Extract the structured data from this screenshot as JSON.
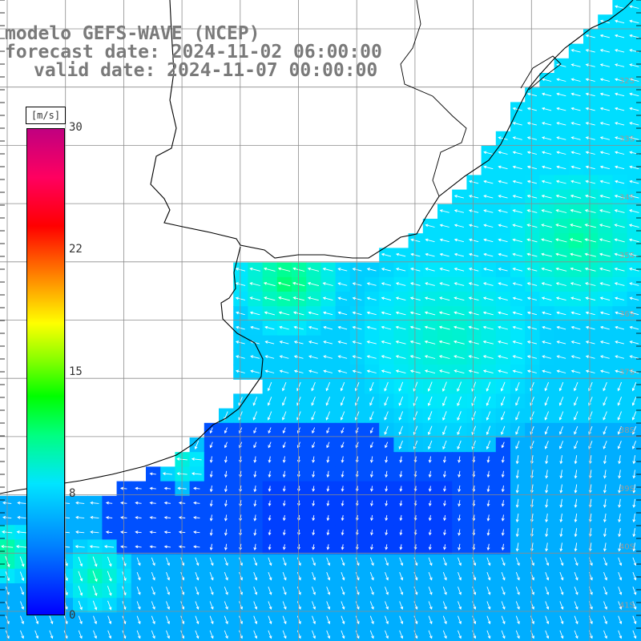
{
  "title": {
    "line1": "modelo GEFS-WAVE (NCEP)",
    "line2": "forecast date: 2024-11-02 06:00:00",
    "line3": "valid date: 2024-11-07 00:00:00"
  },
  "colorbar": {
    "unit": "[m/s]",
    "min": 0,
    "max": 30,
    "ticks": [
      "30",
      "22",
      "15",
      "8",
      "0"
    ],
    "tick_values": [
      30,
      22,
      15,
      8,
      0
    ],
    "colors": [
      "#0000ff",
      "#0080ff",
      "#00e5ff",
      "#00ff80",
      "#00ff00",
      "#ffff00",
      "#ff8000",
      "#ff0000",
      "#c00080"
    ]
  },
  "latitude_labels": [
    "32S",
    "33S",
    "34S",
    "35S",
    "36S",
    "37S",
    "38S",
    "39S",
    "40S",
    "41S"
  ],
  "colors": {
    "land": "#ffffff",
    "coast": "#000000",
    "grid": "#8c8c8c",
    "arrow": "#ffffff",
    "title": "#7a7a7a"
  }
}
